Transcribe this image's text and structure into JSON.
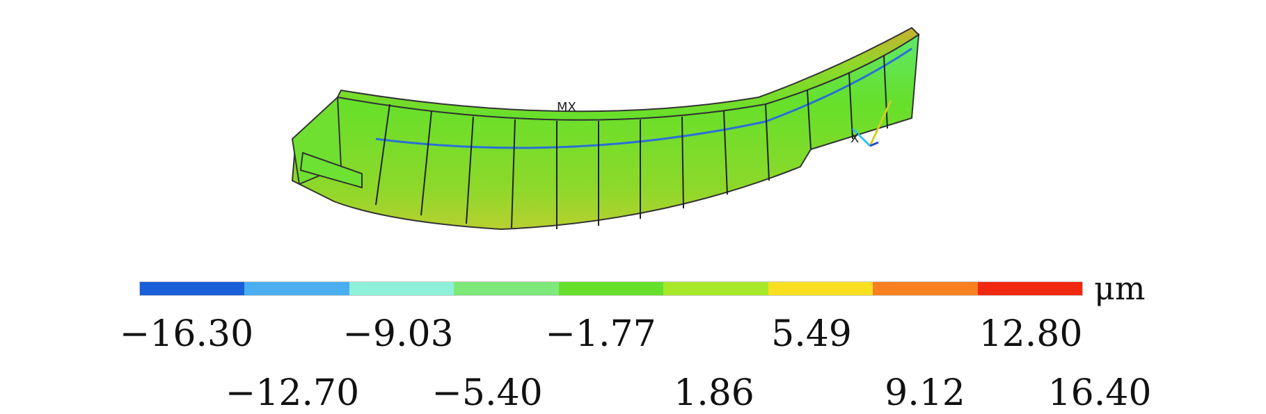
{
  "model": {
    "node_label": "MX",
    "axis_label": "X"
  },
  "legend": {
    "unit": "μm",
    "colors": [
      "#1a5fd8",
      "#4aaef0",
      "#8ef0d8",
      "#7ee87a",
      "#66e02a",
      "#a8e82a",
      "#f8e020",
      "#f88020",
      "#f02810"
    ],
    "labels_top": [
      "−16.30",
      "−9.03",
      "−1.77",
      "5.49",
      "12.80"
    ],
    "labels_bottom": [
      "−12.70",
      "−5.40",
      "1.86",
      "9.12",
      "16.40"
    ]
  }
}
